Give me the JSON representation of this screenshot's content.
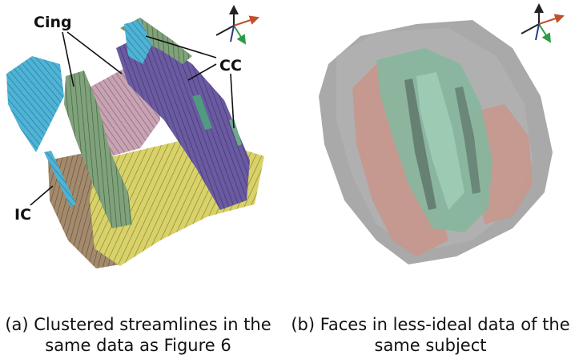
{
  "panels": [
    {
      "caption_line1": "(a) Clustered streamlines in the",
      "caption_line2": "same data as Figure 6",
      "labels": {
        "cing": "Cing",
        "cc": "CC",
        "ic": "IC"
      }
    },
    {
      "caption_line1": "(b) Faces in less-ideal data of the",
      "caption_line2": "same subject"
    }
  ],
  "colors": {
    "streamline_yellow": "#d9d26a",
    "streamline_purple": "#6a5aa0",
    "streamline_green": "#7fa27a",
    "streamline_pink": "#c7a3b3",
    "streamline_cyan": "#4fb3d6",
    "surface_green": "#86b79e",
    "surface_pink": "#c9958a",
    "surface_gray": "#8c8c8c",
    "axis_red": "#c0502a",
    "axis_green": "#2f9a4a",
    "axis_blue": "#2b3a8c",
    "axis_black": "#222222"
  }
}
